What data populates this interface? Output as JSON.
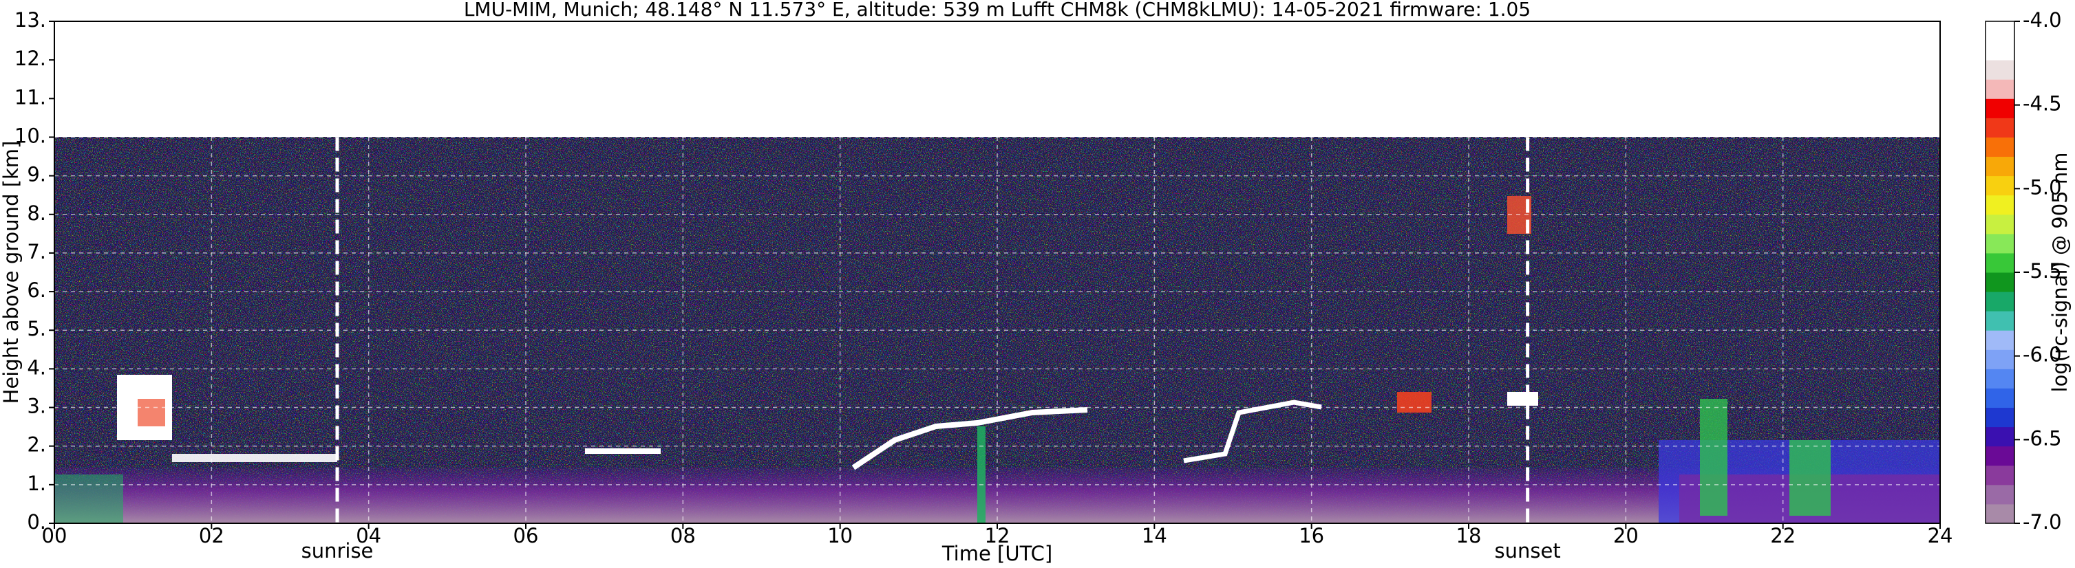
{
  "chart_data": {
    "type": "heatmap",
    "title": "LMU-MIM, Munich; 48.148° N 11.573° E, altitude: 539 m    Lufft CHM8k (CHM8kLMU): 14-05-2021    firmware: 1.05",
    "xlabel": "Time [UTC]",
    "ylabel": "Height above ground [km]",
    "xlim": [
      0,
      24
    ],
    "xticks": [
      {
        "value": 0,
        "label": "00"
      },
      {
        "value": 2,
        "label": "02"
      },
      {
        "value": 4,
        "label": "04"
      },
      {
        "value": 6,
        "label": "06"
      },
      {
        "value": 8,
        "label": "08"
      },
      10,
      12,
      14,
      16,
      18,
      20,
      22,
      24
    ],
    "ylim": [
      0,
      13
    ],
    "yticks": [
      {
        "value": 0,
        "label": "0."
      },
      {
        "value": 1,
        "label": "1."
      },
      {
        "value": 2,
        "label": "2."
      },
      {
        "value": 3,
        "label": "3."
      },
      {
        "value": 4,
        "label": "4."
      },
      {
        "value": 5,
        "label": "5."
      },
      {
        "value": 6,
        "label": "6."
      },
      {
        "value": 7,
        "label": "7."
      },
      {
        "value": 8,
        "label": "8."
      },
      {
        "value": 9,
        "label": "9."
      },
      {
        "value": 10,
        "label": "10."
      },
      {
        "value": 11,
        "label": "11."
      },
      {
        "value": 12,
        "label": "12."
      },
      {
        "value": 13,
        "label": "13."
      }
    ],
    "grid": true,
    "annotations": [
      {
        "x": 3.6,
        "label": "sunrise"
      },
      {
        "x": 18.75,
        "label": "sunset"
      }
    ],
    "colorbar": {
      "label": "log(rc-signal) @ 905 nm",
      "lim": [
        -7,
        -4
      ],
      "ticks": [
        {
          "value": -7,
          "label": "-7.0"
        },
        {
          "value": -6.5,
          "label": "-6.5"
        },
        {
          "value": -6,
          "label": "-6.0"
        },
        {
          "value": -5.5,
          "label": "-5.5"
        },
        {
          "value": -5,
          "label": "-5.0"
        },
        {
          "value": -4.5,
          "label": "-4.5"
        },
        {
          "value": -4,
          "label": "-4.0"
        }
      ],
      "colormap": [
        "#a88aa8",
        "#9a6aa6",
        "#8a3a9c",
        "#6a0a96",
        "#3a10b0",
        "#1e38d0",
        "#3064e8",
        "#5486f2",
        "#7ea2f6",
        "#a0baf8",
        "#40c0b0",
        "#18a868",
        "#10961e",
        "#38c838",
        "#88e858",
        "#c8f040",
        "#f0f020",
        "#f8d010",
        "#f8a808",
        "#f87008",
        "#f03818",
        "#f00000",
        "#f4b8b8",
        "#ece0e0",
        "#ffffff",
        "#ffffff"
      ]
    }
  }
}
